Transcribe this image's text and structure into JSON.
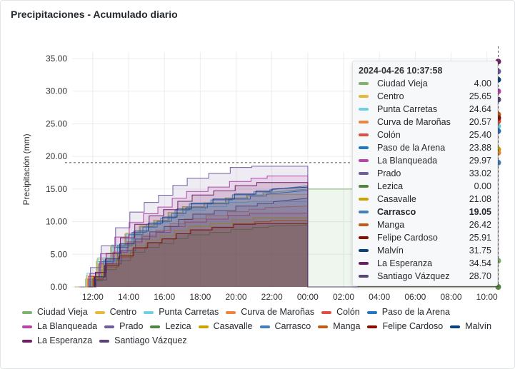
{
  "title": "Precipitaciones - Acumulado diario",
  "chart_data": {
    "type": "area",
    "title": "Precipitaciones - Acumulado diario",
    "xlabel": "",
    "ylabel": "Precipitación (mm)",
    "xlim": [
      10.85,
      34.65
    ],
    "ylim": [
      0,
      36
    ],
    "yticks": [
      0,
      5,
      10,
      15,
      20,
      25,
      30,
      35
    ],
    "ytick_labels": [
      "0.00",
      "5.00",
      "10.00",
      "15.00",
      "20.00",
      "25.00",
      "30.00",
      "35.00"
    ],
    "xticks": [
      12,
      14,
      16,
      18,
      20,
      22,
      24,
      26,
      28,
      30,
      32,
      34
    ],
    "xtick_labels": [
      "12:00",
      "14:00",
      "16:00",
      "18:00",
      "20:00",
      "22:00",
      "00:00",
      "02:00",
      "04:00",
      "06:00",
      "08:00",
      "10:00"
    ],
    "crosshair": {
      "x": 34.63,
      "y": 19.05
    },
    "series": [
      {
        "name": "Ciudad Vieja",
        "color": "#7EB26D",
        "plateau": 15.0,
        "final": 4.0
      },
      {
        "name": "Centro",
        "color": "#EAB839",
        "plateau": 14.2,
        "final": 25.65
      },
      {
        "name": "Punta Carretas",
        "color": "#6ED0E0",
        "plateau": 13.1,
        "final": 24.64
      },
      {
        "name": "Curva de Maroñas",
        "color": "#EF843C",
        "plateau": 12.4,
        "final": 20.57
      },
      {
        "name": "Colón",
        "color": "#E24D42",
        "plateau": 11.3,
        "final": 25.4
      },
      {
        "name": "Paso de la Arena",
        "color": "#1F78C1",
        "plateau": 14.8,
        "final": 23.88
      },
      {
        "name": "La Blanqueada",
        "color": "#BA43A9",
        "plateau": 17.0,
        "final": 29.97
      },
      {
        "name": "Prado",
        "color": "#705DA0",
        "plateau": 18.5,
        "final": 33.02
      },
      {
        "name": "Lezica",
        "color": "#508642",
        "plateau": 9.5,
        "final": 0.0
      },
      {
        "name": "Casavalle",
        "color": "#CCA300",
        "plateau": 10.6,
        "final": 21.08
      },
      {
        "name": "Carrasco",
        "color": "#447EBC",
        "plateau": 15.5,
        "final": 19.05
      },
      {
        "name": "Manga",
        "color": "#C15C17",
        "plateau": 10.2,
        "final": 26.42
      },
      {
        "name": "Felipe Cardoso",
        "color": "#890F02",
        "plateau": 9.7,
        "final": 25.91
      },
      {
        "name": "Malvín",
        "color": "#0A437C",
        "plateau": 15.3,
        "final": 31.75
      },
      {
        "name": "La Esperanza",
        "color": "#6D1F62",
        "plateau": 16.0,
        "final": 34.54
      },
      {
        "name": "Santiago Vázquez",
        "color": "#584477",
        "plateau": 13.6,
        "final": 28.7
      }
    ]
  },
  "tooltip": {
    "time": "2024-04-26 10:37:58",
    "highlight": "Carrasco",
    "values": [
      "4.00",
      "25.65",
      "24.64",
      "20.57",
      "25.40",
      "23.88",
      "29.97",
      "33.02",
      "0.00",
      "21.08",
      "19.05",
      "26.42",
      "25.91",
      "31.75",
      "34.54",
      "28.70"
    ]
  }
}
